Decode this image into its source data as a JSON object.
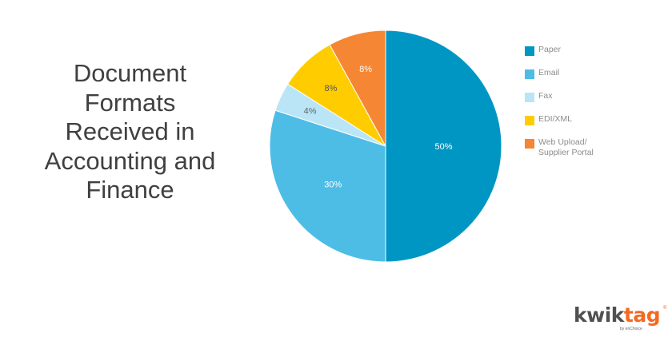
{
  "title_lines": [
    "Document",
    "Formats",
    "Received in",
    "Accounting and",
    "Finance"
  ],
  "logo": {
    "word_part1": "kwik",
    "word_part2": "tag",
    "trademark": "®",
    "sub": "by enChoice",
    "colors": {
      "primary": "#505050",
      "accent": "#f26a21"
    }
  },
  "chart_data": {
    "type": "pie",
    "title": "Document Formats Received in Accounting and Finance",
    "legend_position": "right",
    "slices": [
      {
        "label": "Paper",
        "value": 50,
        "data_label": "50%",
        "color": "#0096c3"
      },
      {
        "label": "Email",
        "value": 30,
        "data_label": "30%",
        "color": "#4dbde6"
      },
      {
        "label": "Fax",
        "value": 4,
        "data_label": "4%",
        "color": "#b9e5f7"
      },
      {
        "label": "EDI/XML",
        "value": 8,
        "data_label": "8%",
        "color": "#ffcc00"
      },
      {
        "label": "Web Upload/ Supplier Portal",
        "value": 8,
        "data_label": "8%",
        "color": "#f58634"
      }
    ]
  }
}
